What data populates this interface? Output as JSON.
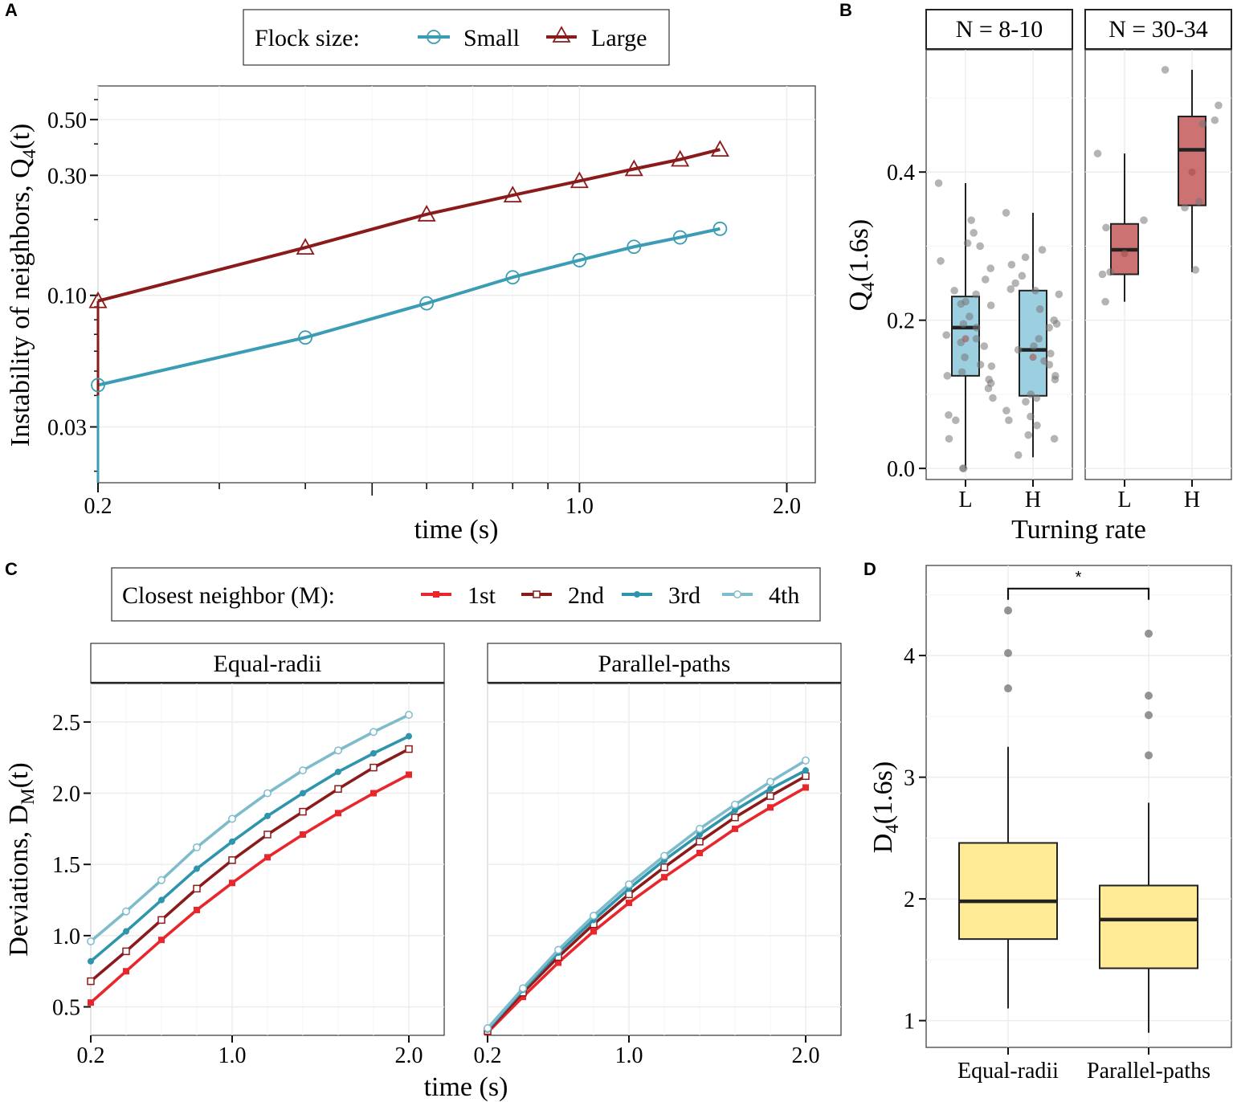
{
  "figure": {
    "colors": {
      "small": "#3a9db3",
      "large": "#8b1a1a",
      "first": "#e8262c",
      "second": "#8b1a1a",
      "third": "#2e95ad",
      "fourth": "#7fbccb",
      "box_blue": "#9ccfe0",
      "box_red": "#cd7273",
      "box_yellow": "#ffea96",
      "grid": "#ececec",
      "axis": "#333333"
    }
  },
  "panels": {
    "A": {
      "letter": "A"
    },
    "B": {
      "letter": "B"
    },
    "C": {
      "letter": "C"
    },
    "D": {
      "letter": "D"
    }
  },
  "chart_data": [
    {
      "id": "A",
      "type": "line",
      "title": "",
      "xlabel": "time (s)",
      "ylabel_main": "Instability of neighbors,  Q",
      "ylabel_sub": "4",
      "ylabel_tail": "(t)",
      "xscale": "log",
      "yscale": "log",
      "xlim": [
        0.2,
        2.2
      ],
      "ylim": [
        0.018,
        0.68
      ],
      "xticks": [
        0.2,
        1.0,
        2.0
      ],
      "xtick_labels": [
        "0.2",
        "1.0",
        "2.0"
      ],
      "xminor": [
        0.3,
        0.4,
        0.5,
        0.6,
        0.7,
        0.8,
        0.9
      ],
      "yticks": [
        0.03,
        0.1,
        0.3,
        0.5
      ],
      "ytick_labels": [
        "0.03",
        "0.10",
        "0.30",
        "0.50"
      ],
      "legend": {
        "title": "Flock size:",
        "placement": "top",
        "entries": [
          "Small",
          "Large"
        ]
      },
      "x": [
        0.2,
        0.4,
        0.6,
        0.8,
        1.0,
        1.2,
        1.4,
        1.6
      ],
      "series": [
        {
          "name": "Small",
          "color_key": "small",
          "marker": "circle",
          "values": [
            0.044,
            0.068,
            0.093,
            0.118,
            0.138,
            0.156,
            0.17,
            0.184
          ]
        },
        {
          "name": "Large",
          "color_key": "large",
          "marker": "triangle",
          "values": [
            0.095,
            0.155,
            0.21,
            0.25,
            0.285,
            0.318,
            0.347,
            0.38
          ]
        }
      ],
      "artifact_points": [
        {
          "series": "Small",
          "x": 0.2,
          "y": 0.018
        },
        {
          "series": "Large",
          "x": 0.2,
          "y": 0.04
        }
      ]
    },
    {
      "id": "B",
      "type": "box",
      "xlabel": "Turning rate",
      "ylabel_main": "Q",
      "ylabel_sub": "4",
      "ylabel_tail": "(1.6s)",
      "ylim": [
        -0.015,
        0.565
      ],
      "yticks": [
        0.0,
        0.2,
        0.4
      ],
      "ytick_labels": [
        "0.0",
        "0.2",
        "0.4"
      ],
      "facets": [
        {
          "label": "N = 8-10",
          "groups": [
            {
              "name": "L",
              "color_key": "box_blue",
              "q1": 0.125,
              "median": 0.19,
              "q3": 0.232,
              "whisker_low": 0.0,
              "whisker_high": 0.385,
              "mean": 0.175,
              "points": [
                0.385,
                0.304,
                0.335,
                0.318,
                0.3,
                0.27,
                0.28,
                0.255,
                0.24,
                0.235,
                0.225,
                0.222,
                0.22,
                0.205,
                0.195,
                0.19,
                0.18,
                0.175,
                0.17,
                0.165,
                0.15,
                0.14,
                0.138,
                0.13,
                0.125,
                0.12,
                0.115,
                0.108,
                0.095,
                0.072,
                0.065,
                0.04,
                0.0,
                0.0
              ]
            },
            {
              "name": "H",
              "color_key": "box_blue",
              "q1": 0.098,
              "median": 0.16,
              "q3": 0.24,
              "whisker_low": 0.015,
              "whisker_high": 0.345,
              "mean": 0.15,
              "points": [
                0.345,
                0.295,
                0.285,
                0.275,
                0.26,
                0.25,
                0.242,
                0.24,
                0.235,
                0.215,
                0.2,
                0.195,
                0.19,
                0.175,
                0.165,
                0.16,
                0.155,
                0.145,
                0.14,
                0.125,
                0.12,
                0.1,
                0.095,
                0.09,
                0.078,
                0.07,
                0.065,
                0.058,
                0.045,
                0.04,
                0.018
              ]
            }
          ]
        },
        {
          "label": "N = 30-34",
          "groups": [
            {
              "name": "L",
              "color_key": "box_red",
              "q1": 0.262,
              "median": 0.295,
              "q3": 0.33,
              "whisker_low": 0.225,
              "whisker_high": 0.425,
              "mean": 0.29,
              "points": [
                0.425,
                0.335,
                0.325,
                0.265,
                0.262,
                0.225
              ]
            },
            {
              "name": "H",
              "color_key": "box_red",
              "q1": 0.355,
              "median": 0.43,
              "q3": 0.475,
              "whisker_low": 0.265,
              "whisker_high": 0.538,
              "mean": 0.4,
              "points": [
                0.538,
                0.49,
                0.47,
                0.465,
                0.36,
                0.352,
                0.268
              ]
            }
          ]
        }
      ]
    },
    {
      "id": "C",
      "type": "line",
      "xlabel": "time (s)",
      "ylabel_main": "Deviations,  D",
      "ylabel_sub": "M",
      "ylabel_tail": "(t)",
      "xlim": [
        0.2,
        2.2
      ],
      "ylim": [
        0.3,
        2.77
      ],
      "xticks": [
        0.2,
        1.0,
        2.0
      ],
      "xtick_labels": [
        "0.2",
        "1.0",
        "2.0"
      ],
      "yticks": [
        0.5,
        1.0,
        1.5,
        2.0,
        2.5
      ],
      "ytick_labels": [
        "0.5",
        "1.0",
        "1.5",
        "2.0",
        "2.5"
      ],
      "legend": {
        "title": "Closest neighbor (M):",
        "placement": "top",
        "entries": [
          "1st",
          "2nd",
          "3rd",
          "4th"
        ]
      },
      "x": [
        0.2,
        0.4,
        0.6,
        0.8,
        1.0,
        1.2,
        1.4,
        1.6,
        1.8,
        2.0
      ],
      "facets": [
        {
          "label": "Equal-radii",
          "series": [
            {
              "name": "1st",
              "color_key": "first",
              "marker": "filled-square",
              "values": [
                0.53,
                0.75,
                0.97,
                1.18,
                1.37,
                1.55,
                1.71,
                1.86,
                2.0,
                2.13
              ]
            },
            {
              "name": "2nd",
              "color_key": "second",
              "marker": "open-square",
              "values": [
                0.68,
                0.89,
                1.11,
                1.33,
                1.53,
                1.71,
                1.87,
                2.03,
                2.18,
                2.31
              ]
            },
            {
              "name": "3rd",
              "color_key": "third",
              "marker": "dot",
              "values": [
                0.82,
                1.03,
                1.25,
                1.47,
                1.66,
                1.84,
                2.0,
                2.15,
                2.28,
                2.4
              ]
            },
            {
              "name": "4th",
              "color_key": "fourth",
              "marker": "open-circle",
              "values": [
                0.96,
                1.17,
                1.39,
                1.62,
                1.82,
                2.0,
                2.16,
                2.3,
                2.43,
                2.55
              ]
            }
          ]
        },
        {
          "label": "Parallel-paths",
          "series": [
            {
              "name": "1st",
              "color_key": "first",
              "marker": "filled-square",
              "values": [
                0.32,
                0.57,
                0.81,
                1.03,
                1.23,
                1.41,
                1.58,
                1.75,
                1.9,
                2.04
              ]
            },
            {
              "name": "2nd",
              "color_key": "second",
              "marker": "open-square",
              "values": [
                0.33,
                0.6,
                0.85,
                1.08,
                1.29,
                1.48,
                1.66,
                1.83,
                1.98,
                2.12
              ]
            },
            {
              "name": "3rd",
              "color_key": "third",
              "marker": "dot",
              "values": [
                0.34,
                0.62,
                0.88,
                1.11,
                1.33,
                1.53,
                1.71,
                1.88,
                2.03,
                2.16
              ]
            },
            {
              "name": "4th",
              "color_key": "fourth",
              "marker": "open-circle",
              "values": [
                0.35,
                0.63,
                0.9,
                1.14,
                1.36,
                1.56,
                1.75,
                1.92,
                2.08,
                2.23
              ]
            }
          ]
        }
      ]
    },
    {
      "id": "D",
      "type": "box",
      "xlabel": "",
      "ylabel_main": "D",
      "ylabel_sub": "4",
      "ylabel_tail": "(1.6s)",
      "ylim": [
        0.78,
        4.74
      ],
      "yticks": [
        1,
        2,
        3,
        4
      ],
      "ytick_labels": [
        "1",
        "2",
        "3",
        "4"
      ],
      "significance": {
        "label": "*",
        "between": [
          "Equal-radii",
          "Parallel-paths"
        ],
        "y": 4.55
      },
      "groups": [
        {
          "name": "Equal-radii",
          "color_key": "box_yellow",
          "q1": 1.67,
          "median": 1.98,
          "q3": 2.46,
          "whisker_low": 1.1,
          "whisker_high": 3.25,
          "outliers": [
            4.37,
            4.02,
            3.73
          ]
        },
        {
          "name": "Parallel-paths",
          "color_key": "box_yellow",
          "q1": 1.43,
          "median": 1.83,
          "q3": 2.11,
          "whisker_low": 0.9,
          "whisker_high": 2.79,
          "outliers": [
            4.18,
            3.67,
            3.51,
            3.18
          ]
        }
      ]
    }
  ]
}
